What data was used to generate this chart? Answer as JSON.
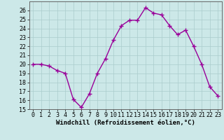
{
  "x": [
    0,
    1,
    2,
    3,
    4,
    5,
    6,
    7,
    8,
    9,
    10,
    11,
    12,
    13,
    14,
    15,
    16,
    17,
    18,
    19,
    20,
    21,
    22,
    23
  ],
  "y": [
    20.0,
    20.0,
    19.8,
    19.3,
    19.0,
    16.1,
    15.2,
    16.7,
    19.0,
    20.6,
    22.7,
    24.3,
    24.9,
    24.9,
    26.3,
    25.7,
    25.5,
    24.3,
    23.3,
    23.8,
    22.0,
    20.0,
    17.5,
    16.5
  ],
  "line_color": "#990099",
  "marker": "+",
  "marker_size": 4,
  "bg_color": "#cce8e8",
  "grid_color": "#aacccc",
  "xlabel": "Windchill (Refroidissement éolien,°C)",
  "ylim": [
    15,
    27
  ],
  "xlim": [
    -0.5,
    23.5
  ],
  "yticks": [
    15,
    16,
    17,
    18,
    19,
    20,
    21,
    22,
    23,
    24,
    25,
    26
  ],
  "xticks": [
    0,
    1,
    2,
    3,
    4,
    5,
    6,
    7,
    8,
    9,
    10,
    11,
    12,
    13,
    14,
    15,
    16,
    17,
    18,
    19,
    20,
    21,
    22,
    23
  ],
  "xlabel_fontsize": 6.5,
  "tick_fontsize": 6.0,
  "line_width": 1.0,
  "marker_size_pt": 5
}
